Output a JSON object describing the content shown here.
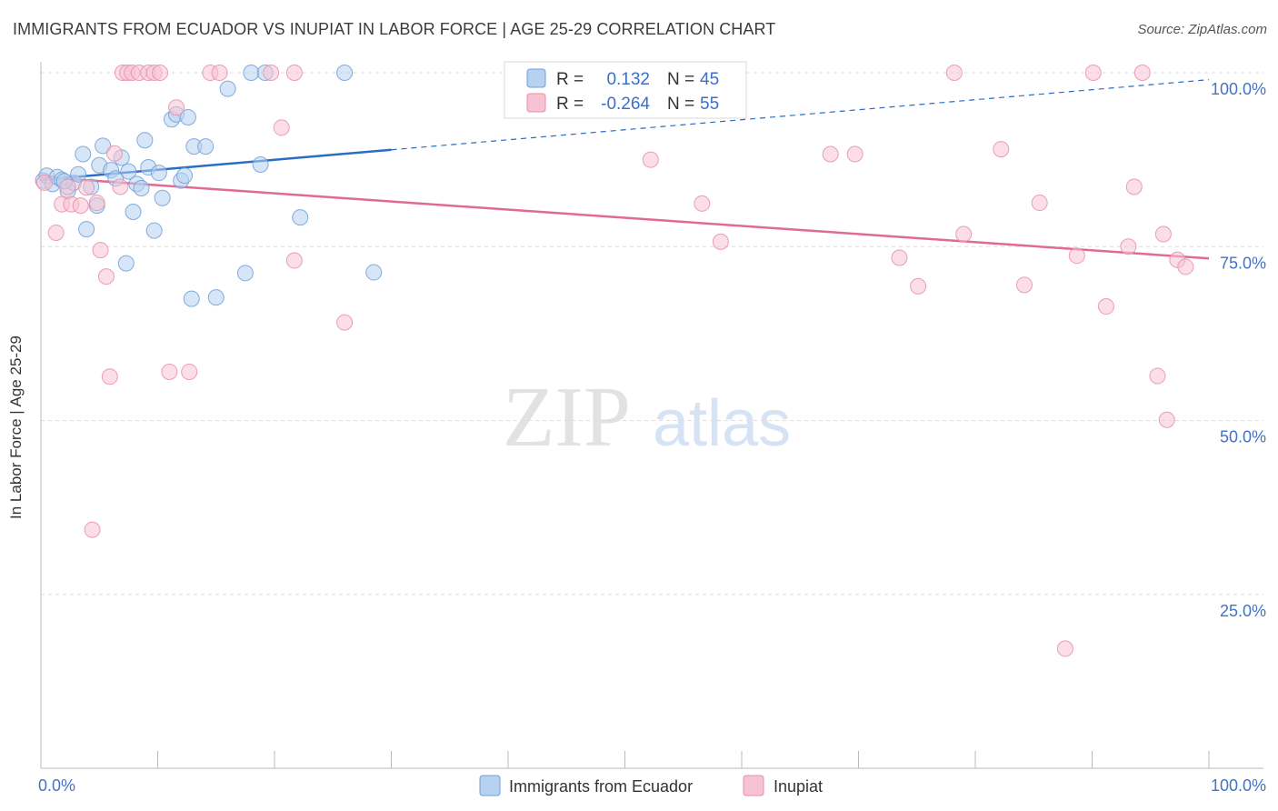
{
  "title": "IMMIGRANTS FROM ECUADOR VS INUPIAT IN LABOR FORCE | AGE 25-29 CORRELATION CHART",
  "source": "Source: ZipAtlas.com",
  "watermark": {
    "zip": "ZIP",
    "atlas": "atlas"
  },
  "colors": {
    "blue_fill": "#b7d2f0",
    "blue_stroke": "#6f9fd8",
    "blue_line": "#2b6cc4",
    "pink_fill": "#f7c3d3",
    "pink_stroke": "#e78ea9",
    "pink_line": "#e06a93",
    "tick_text": "#4472c4",
    "grid": "#dddddd"
  },
  "legend_stats": [
    {
      "r_label": "R =",
      "r_value": "0.132",
      "n_label": "N =",
      "n_value": "45"
    },
    {
      "r_label": "R =",
      "r_value": "-0.264",
      "n_label": "N =",
      "n_value": "55"
    }
  ],
  "chart_data": {
    "type": "scatter",
    "title": "IMMIGRANTS FROM ECUADOR VS INUPIAT IN LABOR FORCE | AGE 25-29 CORRELATION CHART",
    "xlabel": "",
    "ylabel": "In Labor Force | Age 25-29",
    "xlim": [
      0,
      100
    ],
    "ylim": [
      0,
      103
    ],
    "x_tick_labels": [
      {
        "value": 0,
        "label": "0.0%"
      },
      {
        "value": 100,
        "label": "100.0%"
      }
    ],
    "y_tick_labels": [
      {
        "value": 100,
        "label": "100.0%"
      },
      {
        "value": 75,
        "label": "75.0%"
      },
      {
        "value": 50,
        "label": "50.0%"
      },
      {
        "value": 25,
        "label": "25.0%"
      }
    ],
    "grid": true,
    "legend_position": "bottom-center",
    "series": [
      {
        "name": "Immigrants from Ecuador",
        "r": 0.132,
        "n": 45,
        "trend": {
          "x0": 0,
          "y0": 84.6,
          "x1": 100,
          "y1": 99.0,
          "solid_until": 30
        },
        "points": [
          [
            0.2,
            84.5
          ],
          [
            0.5,
            85.2
          ],
          [
            1.0,
            84.0
          ],
          [
            1.4,
            85.0
          ],
          [
            1.8,
            84.6
          ],
          [
            2.3,
            83.0
          ],
          [
            2.8,
            84.2
          ],
          [
            3.2,
            85.4
          ],
          [
            3.6,
            88.3
          ],
          [
            3.9,
            77.5
          ],
          [
            4.3,
            83.6
          ],
          [
            4.8,
            80.9
          ],
          [
            5.0,
            86.7
          ],
          [
            5.3,
            89.5
          ],
          [
            6.0,
            86.0
          ],
          [
            6.4,
            84.8
          ],
          [
            6.9,
            87.8
          ],
          [
            7.3,
            72.6
          ],
          [
            7.5,
            85.8
          ],
          [
            7.9,
            80.0
          ],
          [
            8.2,
            84.0
          ],
          [
            8.6,
            83.4
          ],
          [
            8.9,
            90.3
          ],
          [
            9.2,
            86.4
          ],
          [
            9.7,
            77.3
          ],
          [
            10.1,
            85.6
          ],
          [
            10.4,
            82.0
          ],
          [
            11.2,
            93.3
          ],
          [
            11.6,
            94.0
          ],
          [
            12.0,
            84.5
          ],
          [
            12.3,
            85.2
          ],
          [
            12.6,
            93.6
          ],
          [
            13.1,
            89.4
          ],
          [
            14.1,
            89.4
          ],
          [
            15.0,
            67.7
          ],
          [
            12.9,
            67.5
          ],
          [
            17.5,
            71.2
          ],
          [
            16.0,
            97.7
          ],
          [
            18.8,
            86.8
          ],
          [
            18.0,
            100.0
          ],
          [
            19.2,
            100.0
          ],
          [
            22.2,
            79.2
          ],
          [
            26.0,
            100.0
          ],
          [
            28.5,
            71.3
          ],
          [
            2.0,
            84.4
          ]
        ]
      },
      {
        "name": "Inupiat",
        "r": -0.264,
        "n": 55,
        "trend": {
          "x0": 0,
          "y0": 85.0,
          "x1": 100,
          "y1": 73.3
        },
        "points": [
          [
            0.3,
            84.2
          ],
          [
            1.3,
            77.0
          ],
          [
            1.8,
            81.1
          ],
          [
            2.3,
            83.6
          ],
          [
            2.6,
            81.1
          ],
          [
            3.4,
            80.9
          ],
          [
            3.9,
            83.5
          ],
          [
            4.4,
            34.3
          ],
          [
            4.8,
            81.3
          ],
          [
            5.1,
            74.5
          ],
          [
            5.6,
            70.7
          ],
          [
            5.9,
            56.3
          ],
          [
            6.3,
            88.4
          ],
          [
            6.8,
            83.6
          ],
          [
            7.0,
            100.0
          ],
          [
            7.4,
            100.0
          ],
          [
            7.8,
            100.0
          ],
          [
            8.4,
            100.0
          ],
          [
            9.2,
            100.0
          ],
          [
            9.7,
            100.0
          ],
          [
            10.2,
            100.0
          ],
          [
            11.0,
            57.0
          ],
          [
            11.6,
            95.0
          ],
          [
            12.7,
            57.0
          ],
          [
            14.5,
            100.0
          ],
          [
            15.3,
            100.0
          ],
          [
            19.7,
            100.0
          ],
          [
            20.6,
            92.1
          ],
          [
            21.7,
            73.0
          ],
          [
            21.7,
            100.0
          ],
          [
            26.0,
            64.1
          ],
          [
            52.2,
            87.5
          ],
          [
            56.6,
            81.2
          ],
          [
            58.2,
            75.7
          ],
          [
            67.6,
            88.3
          ],
          [
            69.7,
            88.3
          ],
          [
            73.5,
            73.4
          ],
          [
            75.1,
            69.3
          ],
          [
            78.2,
            100.0
          ],
          [
            79.0,
            76.8
          ],
          [
            82.2,
            89.0
          ],
          [
            84.2,
            69.5
          ],
          [
            85.5,
            81.3
          ],
          [
            87.7,
            17.2
          ],
          [
            88.7,
            73.7
          ],
          [
            90.1,
            100.0
          ],
          [
            91.2,
            66.4
          ],
          [
            93.1,
            75.0
          ],
          [
            93.6,
            83.6
          ],
          [
            94.3,
            100.0
          ],
          [
            95.6,
            56.4
          ],
          [
            96.1,
            76.8
          ],
          [
            96.4,
            50.1
          ],
          [
            97.3,
            73.1
          ],
          [
            98.0,
            72.1
          ]
        ]
      }
    ]
  }
}
